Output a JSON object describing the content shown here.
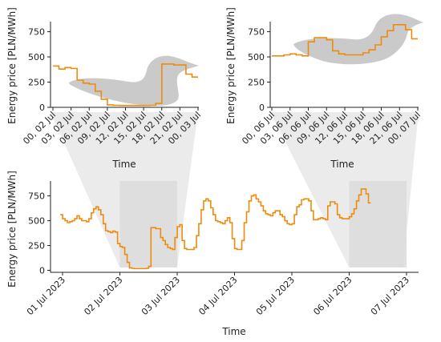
{
  "chart_data": [
    {
      "id": "top_left",
      "type": "line",
      "step": true,
      "ylabel": "Energy price [PLN/MWh]",
      "xlabel": "Time",
      "ylim": [
        0,
        850
      ],
      "yticks": [
        0,
        250,
        500,
        750
      ],
      "xlim": [
        0,
        24
      ],
      "xticks": [
        {
          "x": 0,
          "label": "00, 02 Jul"
        },
        {
          "x": 3,
          "label": "03, 02 Jul"
        },
        {
          "x": 6,
          "label": "06, 02 Jul"
        },
        {
          "x": 9,
          "label": "09, 02 Jul"
        },
        {
          "x": 12,
          "label": "12, 02 Jul"
        },
        {
          "x": 15,
          "label": "15, 02 Jul"
        },
        {
          "x": 18,
          "label": "18, 02 Jul"
        },
        {
          "x": 21,
          "label": "21, 02 Jul"
        },
        {
          "x": 24,
          "label": "00, 03 Jul"
        }
      ],
      "series": [
        {
          "color": "#ef8b0c",
          "x": [
            0,
            1,
            2,
            3,
            4,
            5,
            6,
            7,
            8,
            9,
            10,
            11,
            12,
            13,
            14,
            15,
            16,
            17,
            18,
            19,
            20,
            21,
            22,
            23,
            24
          ],
          "values": [
            410,
            380,
            395,
            385,
            270,
            240,
            230,
            160,
            80,
            25,
            20,
            18,
            18,
            18,
            18,
            18,
            20,
            40,
            430,
            430,
            420,
            420,
            330,
            300,
            300
          ]
        }
      ]
    },
    {
      "id": "top_right",
      "type": "line",
      "step": true,
      "ylabel": "Energy price [PLN/MWh]",
      "xlabel": "Time",
      "ylim": [
        0,
        850
      ],
      "yticks": [
        0,
        250,
        500,
        750
      ],
      "xlim": [
        0,
        24
      ],
      "xticks": [
        {
          "x": 0,
          "label": "00, 06 Jul"
        },
        {
          "x": 3,
          "label": "03, 06 Jul"
        },
        {
          "x": 6,
          "label": "06, 06 Jul"
        },
        {
          "x": 9,
          "label": "09, 06 Jul"
        },
        {
          "x": 12,
          "label": "12, 06 Jul"
        },
        {
          "x": 15,
          "label": "15, 06 Jul"
        },
        {
          "x": 18,
          "label": "18, 06 Jul"
        },
        {
          "x": 21,
          "label": "21, 06 Jul"
        },
        {
          "x": 24,
          "label": "00, 07 Jul"
        }
      ],
      "series": [
        {
          "color": "#ef8b0c",
          "x": [
            0,
            1,
            2,
            3,
            4,
            5,
            6,
            7,
            8,
            9,
            10,
            11,
            12,
            13,
            14,
            15,
            16,
            17,
            18,
            19,
            20,
            21,
            22,
            23,
            24
          ],
          "values": [
            510,
            510,
            520,
            530,
            520,
            510,
            650,
            690,
            690,
            670,
            560,
            530,
            520,
            520,
            520,
            540,
            570,
            620,
            700,
            760,
            820,
            820,
            770,
            680,
            680
          ]
        }
      ]
    },
    {
      "id": "bottom",
      "type": "line",
      "step": true,
      "ylabel": "Energy price [PLN/MWh]",
      "xlabel": "Time",
      "ylim": [
        -20,
        900
      ],
      "yticks": [
        0,
        250,
        500,
        750
      ],
      "xlim": [
        -0.4,
        6.4
      ],
      "xticks": [
        {
          "x": 0,
          "label": "01 Jul 2023"
        },
        {
          "x": 1,
          "label": "02 Jul 2023"
        },
        {
          "x": 2,
          "label": "03 Jul 2023"
        },
        {
          "x": 3,
          "label": "04 Jul 2023"
        },
        {
          "x": 4,
          "label": "05 Jul 2023"
        },
        {
          "x": 5,
          "label": "06 Jul 2023"
        },
        {
          "x": 6,
          "label": "07 Jul 2023"
        }
      ],
      "highlights": [
        {
          "from": 1,
          "to": 2
        },
        {
          "from": 5,
          "to": 6
        }
      ],
      "series": [
        {
          "color": "#ef8b0c",
          "start_x": -0.04,
          "step_x": 0.041666667,
          "values": [
            560,
            520,
            500,
            480,
            490,
            500,
            520,
            550,
            520,
            500,
            500,
            490,
            520,
            580,
            620,
            640,
            610,
            560,
            470,
            400,
            390,
            380,
            395,
            385,
            270,
            240,
            230,
            160,
            80,
            25,
            20,
            18,
            18,
            18,
            18,
            18,
            20,
            40,
            430,
            430,
            420,
            420,
            330,
            300,
            260,
            230,
            220,
            210,
            330,
            440,
            460,
            300,
            220,
            210,
            210,
            210,
            230,
            350,
            470,
            610,
            700,
            720,
            700,
            630,
            560,
            500,
            490,
            480,
            470,
            500,
            530,
            480,
            320,
            220,
            210,
            210,
            300,
            480,
            590,
            700,
            750,
            760,
            720,
            690,
            650,
            600,
            570,
            560,
            550,
            580,
            600,
            600,
            560,
            540,
            500,
            470,
            460,
            470,
            560,
            640,
            660,
            710,
            720,
            720,
            700,
            600,
            510,
            510,
            520,
            530,
            520,
            510,
            650,
            690,
            690,
            670,
            560,
            530,
            520,
            520,
            520,
            540,
            570,
            620,
            700,
            760,
            820,
            820,
            770,
            680
          ]
        }
      ]
    }
  ]
}
